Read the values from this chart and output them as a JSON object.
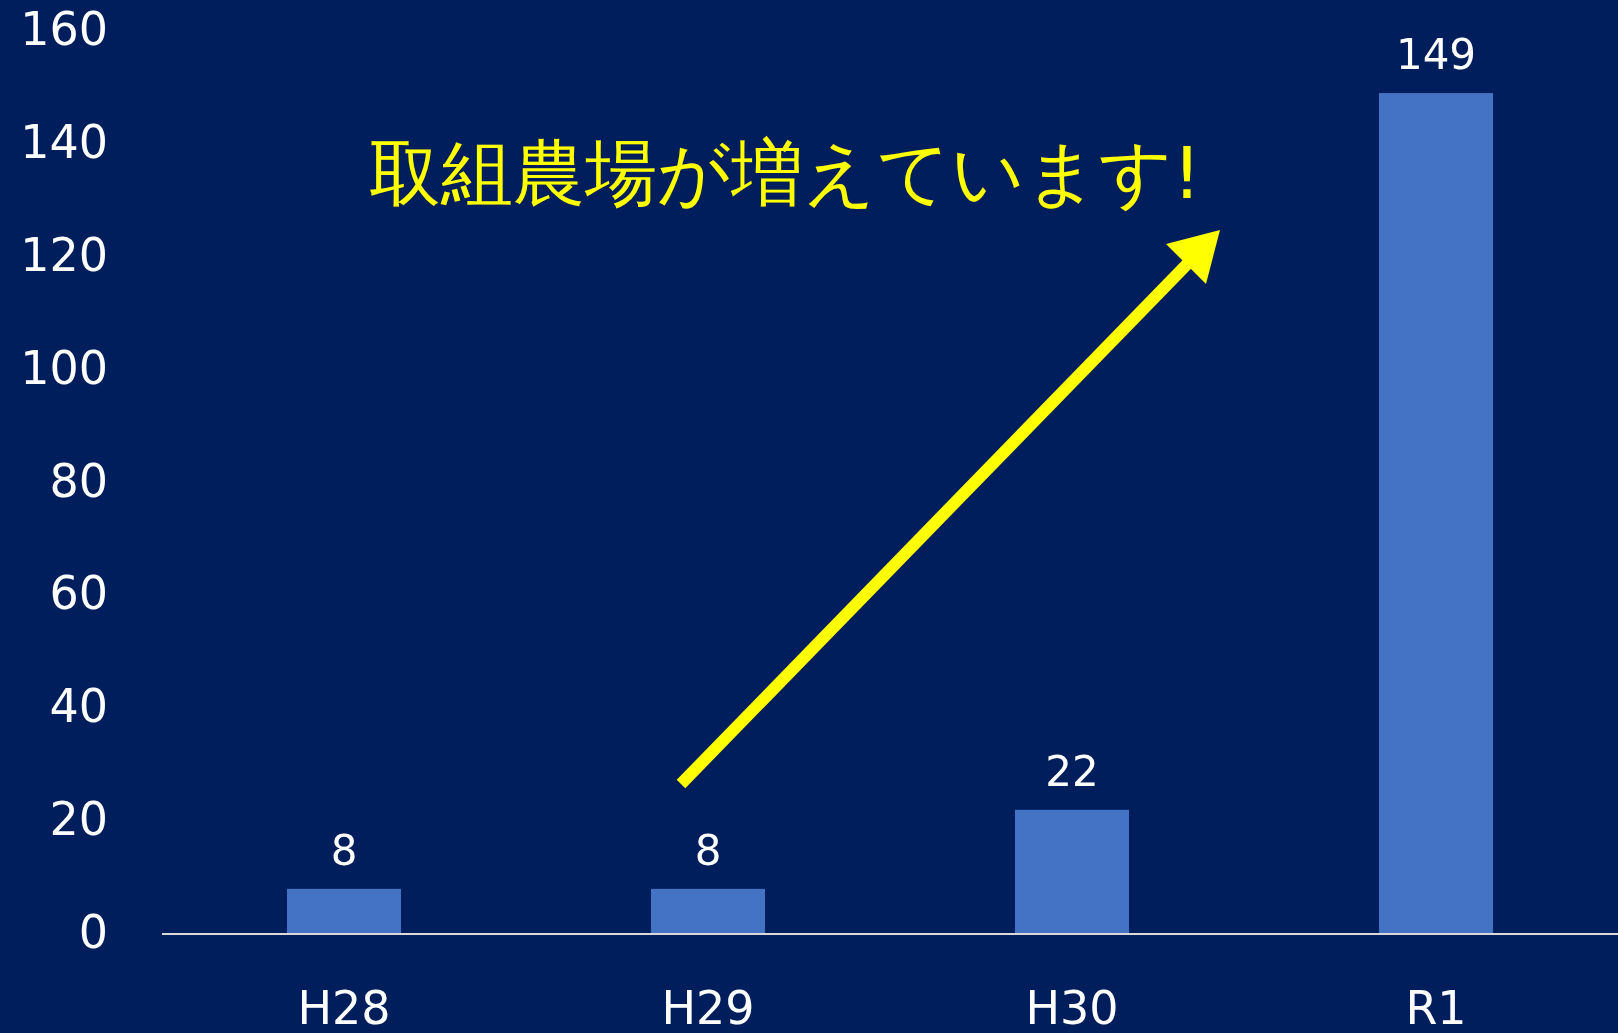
{
  "chart_data": {
    "type": "bar",
    "categories": [
      "H28",
      "H29",
      "H30",
      "R1"
    ],
    "values": [
      8,
      8,
      22,
      149
    ],
    "color": "#4472c4",
    "data_labels": true,
    "ylim": [
      0,
      160
    ],
    "yticks": [
      0,
      20,
      40,
      60,
      80,
      100,
      120,
      140,
      160
    ],
    "grid": false,
    "annotations": [
      "取組農場が増えています!"
    ]
  }
}
